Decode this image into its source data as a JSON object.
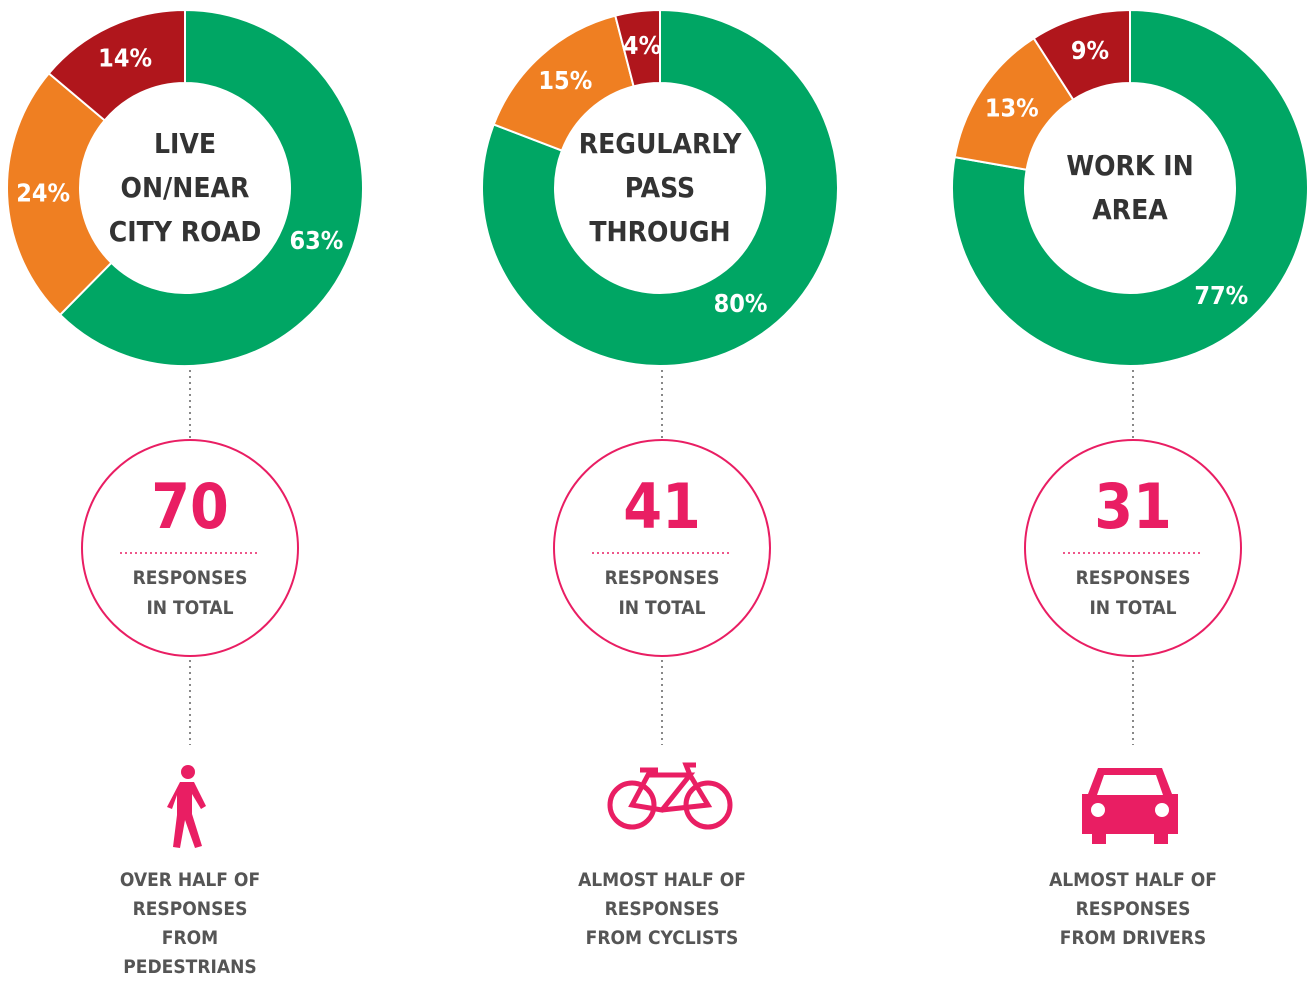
{
  "chart_data": [
    {
      "type": "pie",
      "title": "LIVE ON/NEAR CITY ROAD",
      "values": [
        63,
        24,
        14
      ],
      "value_labels": [
        "63%",
        "24%",
        "14%"
      ],
      "colors": [
        "#00a664",
        "#ef7f22",
        "#b0161c"
      ],
      "total": "70",
      "total_label": "RESPONSES IN TOTAL",
      "caption": "OVER HALF OF RESPONSES FROM PEDESTRIANS"
    },
    {
      "type": "pie",
      "title": "REGULARLY PASS THROUGH",
      "values": [
        80,
        15,
        4
      ],
      "value_labels": [
        "80%",
        "15%",
        "4%"
      ],
      "colors": [
        "#00a664",
        "#ef7f22",
        "#b0161c"
      ],
      "total": "41",
      "total_label": "RESPONSES IN TOTAL",
      "caption": "ALMOST HALF OF RESPONSES FROM CYCLISTS"
    },
    {
      "type": "pie",
      "title": "WORK IN AREA",
      "values": [
        77,
        13,
        9
      ],
      "value_labels": [
        "77%",
        "13%",
        "9%"
      ],
      "colors": [
        "#00a664",
        "#ef7f22",
        "#b0161c"
      ],
      "total": "31",
      "total_label": "RESPONSES IN TOTAL",
      "caption": "ALMOST HALF OF RESPONSES FROM DRIVERS"
    }
  ]
}
